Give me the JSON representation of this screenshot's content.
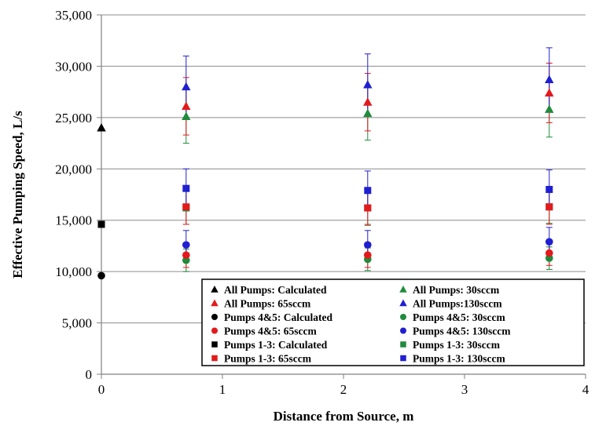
{
  "chart_data": {
    "type": "scatter",
    "title": "",
    "xlabel": "Distance from Source, m",
    "ylabel": "Effective Pumping Speed, L/s",
    "xlim": [
      0,
      4
    ],
    "ylim": [
      0,
      35000
    ],
    "x_ticks": [
      0,
      1,
      2,
      3,
      4
    ],
    "y_ticks": [
      0,
      5000,
      10000,
      15000,
      20000,
      25000,
      30000,
      35000
    ],
    "x_tick_labels": [
      "0",
      "1",
      "2",
      "3",
      "4"
    ],
    "y_tick_labels": [
      "0",
      "5,000",
      "10,000",
      "15,000",
      "20,000",
      "25,000",
      "30,000",
      "35,000"
    ],
    "grid": "horizontal",
    "legend_position": "bottom-right",
    "series": [
      {
        "name": "All Pumps: Calculated",
        "color": "#000000",
        "marker": "triangle",
        "x": [
          0
        ],
        "y": [
          24000
        ]
      },
      {
        "name": "All Pumps: 30sccm",
        "color": "#1e8c3c",
        "marker": "triangle",
        "x": [
          0.7,
          2.2,
          3.7
        ],
        "y": [
          25100,
          25400,
          25800
        ],
        "err": [
          2600,
          2600,
          2700
        ]
      },
      {
        "name": "All Pumps: 65sccm",
        "color": "#e31a1c",
        "marker": "triangle",
        "x": [
          0.7,
          2.2,
          3.7
        ],
        "y": [
          26100,
          26500,
          27400
        ],
        "err": [
          2800,
          2800,
          2900
        ]
      },
      {
        "name": "All Pumps:130sccm",
        "color": "#1f1fd1",
        "marker": "triangle",
        "x": [
          0.7,
          2.2,
          3.7
        ],
        "y": [
          28000,
          28200,
          28700
        ],
        "err": [
          3000,
          3000,
          3100
        ]
      },
      {
        "name": "Pumps 4&5: Calculated",
        "color": "#000000",
        "marker": "circle",
        "x": [
          0
        ],
        "y": [
          9600
        ]
      },
      {
        "name": "Pumps 4&5: 30sccm",
        "color": "#1e8c3c",
        "marker": "circle",
        "x": [
          0.7,
          2.2,
          3.7
        ],
        "y": [
          11100,
          11200,
          11300
        ],
        "err": [
          1100,
          1100,
          1100
        ]
      },
      {
        "name": "Pumps 4&5: 65sccm",
        "color": "#e31a1c",
        "marker": "circle",
        "x": [
          0.7,
          2.2,
          3.7
        ],
        "y": [
          11600,
          11600,
          11800
        ],
        "err": [
          1200,
          1200,
          1200
        ]
      },
      {
        "name": "Pumps 4&5: 130sccm",
        "color": "#1f1fd1",
        "marker": "circle",
        "x": [
          0.7,
          2.2,
          3.7
        ],
        "y": [
          12600,
          12600,
          12900
        ],
        "err": [
          1400,
          1400,
          1400
        ]
      },
      {
        "name": "Pumps 1-3: Calculated",
        "color": "#000000",
        "marker": "square",
        "x": [
          0
        ],
        "y": [
          14600
        ]
      },
      {
        "name": "Pumps 1-3: 30sccm",
        "color": "#1e8c3c",
        "marker": "square",
        "x": [
          0.7,
          2.2,
          3.7
        ],
        "y": [
          16200,
          16200,
          16300
        ],
        "err": [
          1600,
          1600,
          1600
        ]
      },
      {
        "name": "Pumps 1-3: 65sccm",
        "color": "#e31a1c",
        "marker": "square",
        "x": [
          0.7,
          2.2,
          3.7
        ],
        "y": [
          16300,
          16200,
          16300
        ],
        "err": [
          1700,
          1700,
          1700
        ]
      },
      {
        "name": "Pumps 1-3: 130sccm",
        "color": "#1f1fd1",
        "marker": "square",
        "x": [
          0.7,
          2.2,
          3.7
        ],
        "y": [
          18100,
          17900,
          18000
        ],
        "err": [
          1900,
          1900,
          1900
        ]
      }
    ]
  }
}
